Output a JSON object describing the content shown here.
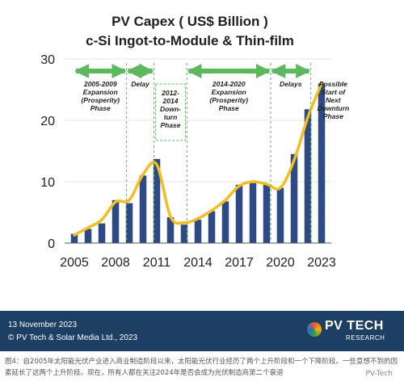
{
  "chart_data": {
    "type": "bar",
    "title": "PV Capex ( US$ Billion )",
    "subtitle": "c-Si Ingot-to-Module & Thin-film",
    "x": [
      2005,
      2006,
      2007,
      2008,
      2009,
      2010,
      2011,
      2012,
      2013,
      2014,
      2015,
      2016,
      2017,
      2018,
      2019,
      2020,
      2021,
      2022,
      2023
    ],
    "values": [
      1.5,
      2.3,
      3.2,
      7.0,
      6.5,
      11.0,
      13.7,
      4.2,
      3.0,
      3.8,
      5.2,
      6.8,
      9.5,
      10.0,
      9.5,
      9.0,
      14.5,
      21.8,
      26.0
    ],
    "trend": [
      1.3,
      2.5,
      3.8,
      6.7,
      7.0,
      11.2,
      12.8,
      4.3,
      3.3,
      4.0,
      5.3,
      7.0,
      9.3,
      10.0,
      9.6,
      9.0,
      13.5,
      20.5,
      26.0
    ],
    "xticks": [
      "2005",
      "2008",
      "2011",
      "2014",
      "2017",
      "2020",
      "2023"
    ],
    "yticks": [
      "0",
      "10",
      "20",
      "30"
    ],
    "ylim": [
      0,
      30
    ],
    "xlabel": "",
    "ylabel": "",
    "bar_color": "#2e4a84",
    "trend_color": "#f4bd22",
    "phase_color": "#5cb85c",
    "annotations": [
      {
        "label": "2005-2009 Expansion (Prosperity) Phase",
        "lines": [
          "2005-2009",
          "Expansion",
          "(Prosperity)",
          "Phase"
        ]
      },
      {
        "label": "Delay",
        "lines": [
          "Delay"
        ]
      },
      {
        "label": "2012-2014 Down-turn Phase",
        "lines": [
          "2012-",
          "2014",
          "Down-",
          "turn",
          "Phase"
        ]
      },
      {
        "label": "2014-2020 Expansion (Prosperity) Phase",
        "lines": [
          "2014-2020",
          "Expansion",
          "(Prosperity)",
          "Phase"
        ]
      },
      {
        "label": "Delays",
        "lines": [
          "Delays"
        ]
      },
      {
        "label": "Possible Start of Next Downturn Phase",
        "lines": [
          "Possible",
          "Start of",
          "Next",
          "Downturn",
          "Phase"
        ]
      }
    ]
  },
  "footer": {
    "date": "13 November 2023",
    "copyright": "© PV Tech & Solar Media Ltd., 2023",
    "logo_main": "PV TECH",
    "logo_sub": "RESEARCH"
  },
  "caption": "图4：自2005年太阳能光伏产业进入商业制造阶段以来，太阳能光伏行业经历了两个上升阶段和一个下降阶段。一些意想不到的因素延长了这两个上升阶段。现在，所有人都在关注2024年是否会成为光伏制造商第二个衰退",
  "watermark": "PV-Tech"
}
